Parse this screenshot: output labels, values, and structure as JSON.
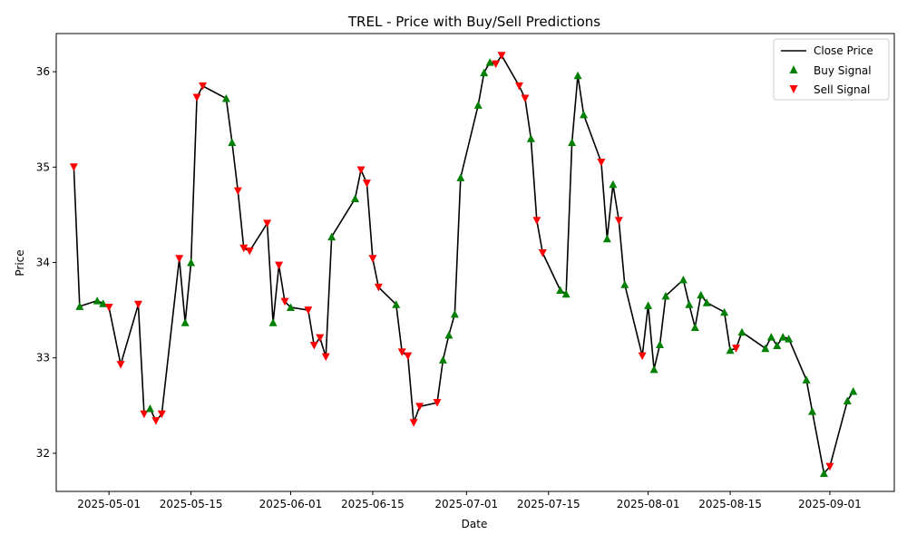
{
  "chart_data": {
    "type": "line",
    "title": "TREL - Price with Buy/Sell Predictions",
    "xlabel": "Date",
    "ylabel": "Price",
    "xlim": [
      "2025-04-22",
      "2025-09-12"
    ],
    "ylim": [
      31.6,
      36.4
    ],
    "x_ticks": [
      "2025-05-01",
      "2025-05-15",
      "2025-06-01",
      "2025-06-15",
      "2025-07-01",
      "2025-07-15",
      "2025-08-01",
      "2025-08-15",
      "2025-09-01"
    ],
    "y_ticks": [
      32,
      33,
      34,
      35,
      36
    ],
    "grid": false,
    "legend_position": "top-right",
    "series": [
      {
        "name": "Close Price",
        "kind": "line",
        "color": "#000000",
        "points": [
          {
            "date": "2025-04-25",
            "price": 35.0,
            "signal": "sell"
          },
          {
            "date": "2025-04-26",
            "price": 33.54,
            "signal": "buy"
          },
          {
            "date": "2025-04-29",
            "price": 33.6,
            "signal": "buy"
          },
          {
            "date": "2025-04-30",
            "price": 33.57,
            "signal": "buy"
          },
          {
            "date": "2025-05-01",
            "price": 33.53,
            "signal": "sell"
          },
          {
            "date": "2025-05-03",
            "price": 32.93,
            "signal": "sell"
          },
          {
            "date": "2025-05-06",
            "price": 33.56,
            "signal": "sell"
          },
          {
            "date": "2025-05-07",
            "price": 32.41,
            "signal": "sell"
          },
          {
            "date": "2025-05-08",
            "price": 32.47,
            "signal": "buy"
          },
          {
            "date": "2025-05-09",
            "price": 32.34,
            "signal": "sell"
          },
          {
            "date": "2025-05-10",
            "price": 32.41,
            "signal": "sell"
          },
          {
            "date": "2025-05-13",
            "price": 34.04,
            "signal": "sell"
          },
          {
            "date": "2025-05-14",
            "price": 33.37,
            "signal": "buy"
          },
          {
            "date": "2025-05-15",
            "price": 34.0,
            "signal": "buy"
          },
          {
            "date": "2025-05-16",
            "price": 35.73,
            "signal": "sell"
          },
          {
            "date": "2025-05-17",
            "price": 35.85,
            "signal": "sell"
          },
          {
            "date": "2025-05-21",
            "price": 35.72,
            "signal": "buy"
          },
          {
            "date": "2025-05-22",
            "price": 35.26,
            "signal": "buy"
          },
          {
            "date": "2025-05-23",
            "price": 34.75,
            "signal": "sell"
          },
          {
            "date": "2025-05-24",
            "price": 34.15,
            "signal": "sell"
          },
          {
            "date": "2025-05-25",
            "price": 34.12,
            "signal": "sell"
          },
          {
            "date": "2025-05-28",
            "price": 34.41,
            "signal": "sell"
          },
          {
            "date": "2025-05-29",
            "price": 33.37,
            "signal": "buy"
          },
          {
            "date": "2025-05-30",
            "price": 33.97,
            "signal": "sell"
          },
          {
            "date": "2025-05-31",
            "price": 33.59,
            "signal": "sell"
          },
          {
            "date": "2025-06-01",
            "price": 33.53,
            "signal": "buy"
          },
          {
            "date": "2025-06-04",
            "price": 33.5,
            "signal": "sell"
          },
          {
            "date": "2025-06-05",
            "price": 33.13,
            "signal": "sell"
          },
          {
            "date": "2025-06-06",
            "price": 33.21,
            "signal": "sell"
          },
          {
            "date": "2025-06-07",
            "price": 33.01,
            "signal": "sell"
          },
          {
            "date": "2025-06-08",
            "price": 34.27,
            "signal": "buy"
          },
          {
            "date": "2025-06-12",
            "price": 34.67,
            "signal": "buy"
          },
          {
            "date": "2025-06-13",
            "price": 34.97,
            "signal": "sell"
          },
          {
            "date": "2025-06-14",
            "price": 34.83,
            "signal": "sell"
          },
          {
            "date": "2025-06-15",
            "price": 34.04,
            "signal": "sell"
          },
          {
            "date": "2025-06-16",
            "price": 33.74,
            "signal": "sell"
          },
          {
            "date": "2025-06-19",
            "price": 33.56,
            "signal": "buy"
          },
          {
            "date": "2025-06-20",
            "price": 33.06,
            "signal": "sell"
          },
          {
            "date": "2025-06-21",
            "price": 33.02,
            "signal": "sell"
          },
          {
            "date": "2025-06-22",
            "price": 32.32,
            "signal": "sell"
          },
          {
            "date": "2025-06-23",
            "price": 32.49,
            "signal": "sell"
          },
          {
            "date": "2025-06-26",
            "price": 32.53,
            "signal": "sell"
          },
          {
            "date": "2025-06-27",
            "price": 32.98,
            "signal": "buy"
          },
          {
            "date": "2025-06-28",
            "price": 33.24,
            "signal": "buy"
          },
          {
            "date": "2025-06-29",
            "price": 33.46,
            "signal": "buy"
          },
          {
            "date": "2025-06-30",
            "price": 34.89,
            "signal": "buy"
          },
          {
            "date": "2025-07-03",
            "price": 35.65,
            "signal": "buy"
          },
          {
            "date": "2025-07-04",
            "price": 35.99,
            "signal": "buy"
          },
          {
            "date": "2025-07-05",
            "price": 36.1,
            "signal": "buy"
          },
          {
            "date": "2025-07-06",
            "price": 36.08,
            "signal": "sell"
          },
          {
            "date": "2025-07-07",
            "price": 36.17,
            "signal": "sell"
          },
          {
            "date": "2025-07-10",
            "price": 35.85,
            "signal": "sell"
          },
          {
            "date": "2025-07-11",
            "price": 35.72,
            "signal": "sell"
          },
          {
            "date": "2025-07-12",
            "price": 35.3,
            "signal": "buy"
          },
          {
            "date": "2025-07-13",
            "price": 34.44,
            "signal": "sell"
          },
          {
            "date": "2025-07-14",
            "price": 34.1,
            "signal": "sell"
          },
          {
            "date": "2025-07-17",
            "price": 33.71,
            "signal": "buy"
          },
          {
            "date": "2025-07-18",
            "price": 33.67,
            "signal": "buy"
          },
          {
            "date": "2025-07-19",
            "price": 35.26,
            "signal": "buy"
          },
          {
            "date": "2025-07-20",
            "price": 35.96,
            "signal": "buy"
          },
          {
            "date": "2025-07-21",
            "price": 35.55,
            "signal": "buy"
          },
          {
            "date": "2025-07-24",
            "price": 35.05,
            "signal": "sell"
          },
          {
            "date": "2025-07-25",
            "price": 34.25,
            "signal": "buy"
          },
          {
            "date": "2025-07-26",
            "price": 34.82,
            "signal": "buy"
          },
          {
            "date": "2025-07-27",
            "price": 34.44,
            "signal": "sell"
          },
          {
            "date": "2025-07-28",
            "price": 33.77,
            "signal": "buy"
          },
          {
            "date": "2025-07-31",
            "price": 33.02,
            "signal": "sell"
          },
          {
            "date": "2025-08-01",
            "price": 33.55,
            "signal": "buy"
          },
          {
            "date": "2025-08-02",
            "price": 32.88,
            "signal": "buy"
          },
          {
            "date": "2025-08-03",
            "price": 33.14,
            "signal": "buy"
          },
          {
            "date": "2025-08-04",
            "price": 33.65,
            "signal": "buy"
          },
          {
            "date": "2025-08-07",
            "price": 33.82,
            "signal": "buy"
          },
          {
            "date": "2025-08-08",
            "price": 33.56,
            "signal": "buy"
          },
          {
            "date": "2025-08-09",
            "price": 33.32,
            "signal": "buy"
          },
          {
            "date": "2025-08-10",
            "price": 33.66,
            "signal": "buy"
          },
          {
            "date": "2025-08-11",
            "price": 33.58,
            "signal": "buy"
          },
          {
            "date": "2025-08-14",
            "price": 33.48,
            "signal": "buy"
          },
          {
            "date": "2025-08-15",
            "price": 33.08,
            "signal": "buy"
          },
          {
            "date": "2025-08-16",
            "price": 33.1,
            "signal": "sell"
          },
          {
            "date": "2025-08-17",
            "price": 33.27,
            "signal": "buy"
          },
          {
            "date": "2025-08-21",
            "price": 33.1,
            "signal": "buy"
          },
          {
            "date": "2025-08-22",
            "price": 33.22,
            "signal": "buy"
          },
          {
            "date": "2025-08-23",
            "price": 33.13,
            "signal": "buy"
          },
          {
            "date": "2025-08-24",
            "price": 33.22,
            "signal": "buy"
          },
          {
            "date": "2025-08-25",
            "price": 33.2,
            "signal": "buy"
          },
          {
            "date": "2025-08-28",
            "price": 32.77,
            "signal": "buy"
          },
          {
            "date": "2025-08-29",
            "price": 32.44,
            "signal": "buy"
          },
          {
            "date": "2025-08-31",
            "price": 31.79,
            "signal": "buy"
          },
          {
            "date": "2025-09-01",
            "price": 31.86,
            "signal": "sell"
          },
          {
            "date": "2025-09-04",
            "price": 32.55,
            "signal": "buy"
          },
          {
            "date": "2025-09-05",
            "price": 32.65,
            "signal": "buy"
          }
        ]
      },
      {
        "name": "Buy Signal",
        "kind": "scatter",
        "marker": "triangle-up",
        "color": "#008000"
      },
      {
        "name": "Sell Signal",
        "kind": "scatter",
        "marker": "triangle-down",
        "color": "#ff0000"
      }
    ]
  }
}
